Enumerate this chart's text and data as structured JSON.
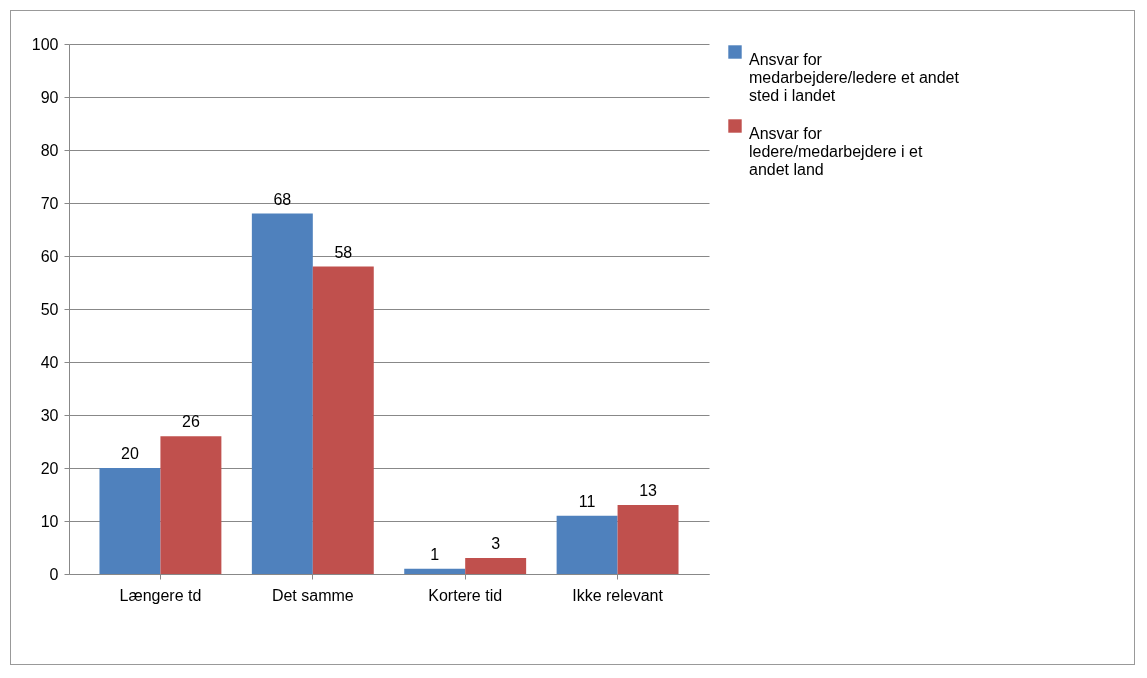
{
  "chart_data": {
    "type": "bar",
    "categories": [
      "Længere td",
      "Det samme",
      "Kortere tid",
      "Ikke relevant"
    ],
    "series": [
      {
        "name": "Ansvar for medarbejdere/ledere et andet sted i landet",
        "color": "#4f81bd",
        "values": [
          20,
          68,
          1,
          11
        ]
      },
      {
        "name": "Ansvar for ledere/medarbejdere i et andet land",
        "color": "#c0504d",
        "values": [
          26,
          58,
          3,
          13
        ]
      }
    ],
    "ylim": [
      0,
      100
    ],
    "yticks": [
      0,
      10,
      20,
      30,
      40,
      50,
      60,
      70,
      80,
      90,
      100
    ],
    "grid": "y",
    "legend": "right",
    "data_labels": true
  }
}
